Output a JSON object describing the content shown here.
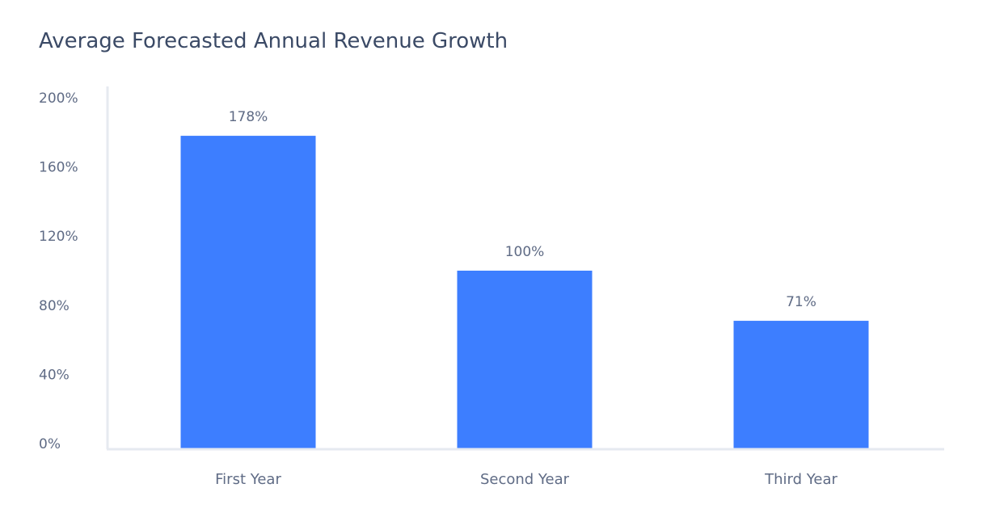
{
  "chart_data": {
    "type": "bar",
    "title": "Average Forecasted Annual Revenue Growth",
    "categories": [
      "First Year",
      "Second Year",
      "Third Year"
    ],
    "values": [
      178,
      100,
      71
    ],
    "data_labels": [
      "178%",
      "100%",
      "71%"
    ],
    "y_ticks": [
      0,
      40,
      80,
      120,
      160,
      200
    ],
    "y_tick_labels": [
      "0%",
      "40%",
      "80%",
      "120%",
      "160%",
      "200%"
    ],
    "ylim": [
      0,
      200
    ],
    "xlabel": "",
    "ylabel": "",
    "grid": false,
    "legend": "none"
  },
  "colors": {
    "bar": "#3d7eff",
    "title": "#3b4a66",
    "text": "#5f6b85",
    "axis": "#e6eaf0"
  }
}
